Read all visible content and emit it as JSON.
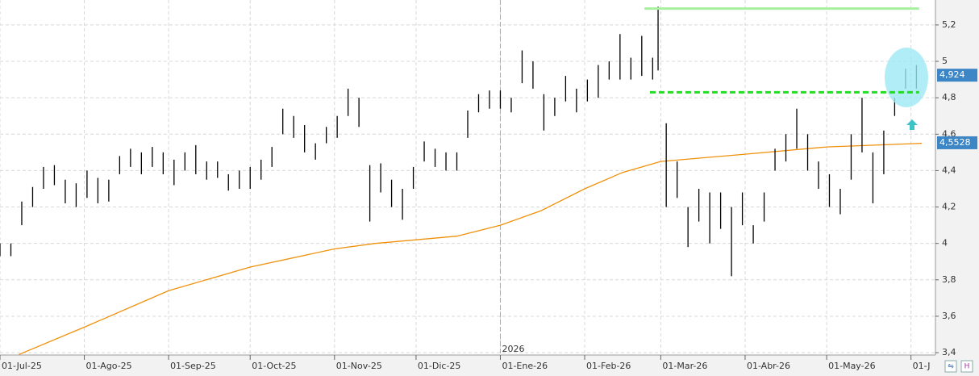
{
  "chart_data": {
    "type": "ohlc",
    "color": "#000000",
    "grid": true,
    "xlim": [
      "2025-07-01",
      "2026-06-10"
    ],
    "ylim": [
      3.387,
      5.337
    ],
    "yticks": [
      {
        "value": 3.4,
        "label": "3,4"
      },
      {
        "value": 3.6,
        "label": "3,6"
      },
      {
        "value": 3.8,
        "label": "3,8"
      },
      {
        "value": 4,
        "label": "4"
      },
      {
        "value": 4.2,
        "label": "4,2"
      },
      {
        "value": 4.4,
        "label": "4,4"
      },
      {
        "value": 4.6,
        "label": "4,6"
      },
      {
        "value": 4.8,
        "label": "4,8"
      },
      {
        "value": 5,
        "label": "5"
      },
      {
        "value": 5.2,
        "label": "5,2"
      }
    ],
    "xticks": [
      {
        "value": "2025-07-01",
        "label": "01-Jul-25"
      },
      {
        "value": "2025-08-01",
        "label": "01-Ago-25"
      },
      {
        "value": "2025-09-01",
        "label": "01-Sep-25"
      },
      {
        "value": "2025-10-01",
        "label": "01-Oct-25"
      },
      {
        "value": "2025-11-01",
        "label": "01-Nov-25"
      },
      {
        "value": "2025-12-01",
        "label": "01-Dic-25"
      },
      {
        "value": "2026-01-01",
        "label": "01-Ene-26"
      },
      {
        "value": "2026-02-01",
        "label": "01-Feb-26"
      },
      {
        "value": "2026-03-01",
        "label": "01-Mar-26"
      },
      {
        "value": "2026-04-01",
        "label": "01-Abr-26"
      },
      {
        "value": "2026-05-01",
        "label": "01-May-26"
      },
      {
        "value": "2026-06-01",
        "label": "01-J"
      }
    ],
    "year_marker": {
      "value": "2026-01-01",
      "label": "2026"
    },
    "x": [
      "2025-07-01",
      "2025-07-05",
      "2025-07-09",
      "2025-07-13",
      "2025-07-17",
      "2025-07-21",
      "2025-07-25",
      "2025-07-29",
      "2025-08-02",
      "2025-08-06",
      "2025-08-10",
      "2025-08-14",
      "2025-08-18",
      "2025-08-22",
      "2025-08-26",
      "2025-08-30",
      "2025-09-03",
      "2025-09-07",
      "2025-09-11",
      "2025-09-15",
      "2025-09-19",
      "2025-09-23",
      "2025-09-27",
      "2025-10-01",
      "2025-10-05",
      "2025-10-09",
      "2025-10-13",
      "2025-10-17",
      "2025-10-21",
      "2025-10-25",
      "2025-10-29",
      "2025-11-02",
      "2025-11-06",
      "2025-11-10",
      "2025-11-14",
      "2025-11-18",
      "2025-11-22",
      "2025-11-26",
      "2025-11-30",
      "2025-12-04",
      "2025-12-08",
      "2025-12-12",
      "2025-12-16",
      "2025-12-20",
      "2025-12-24",
      "2025-12-28",
      "2026-01-01",
      "2026-01-05",
      "2026-01-09",
      "2026-01-13",
      "2026-01-17",
      "2026-01-21",
      "2026-01-25",
      "2026-01-29",
      "2026-02-02",
      "2026-02-06",
      "2026-02-10",
      "2026-02-14",
      "2026-02-18",
      "2026-02-22",
      "2026-02-26",
      "2026-02-28",
      "2026-03-03",
      "2026-03-07",
      "2026-03-11",
      "2026-03-15",
      "2026-03-19",
      "2026-03-23",
      "2026-03-27",
      "2026-03-31",
      "2026-04-04",
      "2026-04-08",
      "2026-04-12",
      "2026-04-16",
      "2026-04-20",
      "2026-04-24",
      "2026-04-28",
      "2026-05-02",
      "2026-05-06",
      "2026-05-10",
      "2026-05-14",
      "2026-05-18",
      "2026-05-22",
      "2026-05-26",
      "2026-05-30",
      "2026-06-03"
    ],
    "high": [
      4.0,
      4.0,
      4.23,
      4.31,
      4.42,
      4.43,
      4.35,
      4.33,
      4.4,
      4.36,
      4.35,
      4.48,
      4.52,
      4.5,
      4.53,
      4.5,
      4.46,
      4.5,
      4.54,
      4.45,
      4.45,
      4.38,
      4.4,
      4.42,
      4.46,
      4.53,
      4.74,
      4.7,
      4.65,
      4.55,
      4.64,
      4.7,
      4.85,
      4.8,
      4.43,
      4.44,
      4.35,
      4.3,
      4.42,
      4.56,
      4.52,
      4.5,
      4.5,
      4.73,
      4.82,
      4.84,
      4.84,
      4.8,
      5.06,
      5.0,
      4.82,
      4.8,
      4.92,
      4.85,
      4.9,
      4.98,
      5.0,
      5.15,
      5.02,
      5.14,
      5.02,
      5.3,
      4.66,
      4.45,
      4.2,
      4.3,
      4.28,
      4.28,
      4.2,
      4.28,
      4.1,
      4.28,
      4.52,
      4.6,
      4.74,
      4.6,
      4.45,
      4.38,
      4.3,
      4.6,
      4.8,
      4.5,
      4.62,
      4.8,
      4.96,
      4.98
    ],
    "low": [
      3.93,
      3.93,
      4.1,
      4.2,
      4.3,
      4.32,
      4.22,
      4.2,
      4.25,
      4.22,
      4.23,
      4.38,
      4.42,
      4.38,
      4.42,
      4.38,
      4.32,
      4.4,
      4.38,
      4.35,
      4.36,
      4.29,
      4.3,
      4.3,
      4.35,
      4.42,
      4.6,
      4.58,
      4.5,
      4.46,
      4.55,
      4.58,
      4.7,
      4.64,
      4.12,
      4.28,
      4.2,
      4.13,
      4.3,
      4.45,
      4.42,
      4.4,
      4.4,
      4.58,
      4.72,
      4.74,
      4.74,
      4.72,
      4.88,
      4.85,
      4.62,
      4.7,
      4.78,
      4.72,
      4.78,
      4.8,
      4.9,
      4.9,
      4.9,
      4.92,
      4.9,
      4.95,
      4.2,
      4.25,
      3.98,
      4.12,
      4.0,
      4.08,
      3.82,
      4.1,
      4.0,
      4.12,
      4.4,
      4.45,
      4.52,
      4.4,
      4.3,
      4.2,
      4.16,
      4.35,
      4.5,
      4.22,
      4.38,
      4.7,
      4.85,
      4.85
    ],
    "ma": {
      "color": "#f0900a",
      "x": [
        "2025-07-08",
        "2025-08-01",
        "2025-09-01",
        "2025-10-01",
        "2025-11-01",
        "2025-11-16",
        "2025-12-01",
        "2025-12-16",
        "2026-01-01",
        "2026-01-16",
        "2026-02-01",
        "2026-02-15",
        "2026-03-01",
        "2026-04-01",
        "2026-05-01",
        "2026-06-05"
      ],
      "values": [
        3.39,
        3.54,
        3.74,
        3.87,
        3.97,
        4.0,
        4.02,
        4.04,
        4.1,
        4.18,
        4.3,
        4.39,
        4.45,
        4.49,
        4.53,
        4.55
      ]
    },
    "levels": [
      {
        "value": 5.29,
        "from": "2026-02-23",
        "to": "2026-06-04",
        "color": "#a8f0a0",
        "dash": false
      },
      {
        "value": 4.83,
        "from": "2026-02-25",
        "to": "2026-06-04",
        "color": "#22dd22",
        "dash": true
      }
    ],
    "tags": [
      {
        "value": 4.924,
        "label": "4,924"
      },
      {
        "value": 4.5528,
        "label": "4,5528"
      }
    ]
  }
}
